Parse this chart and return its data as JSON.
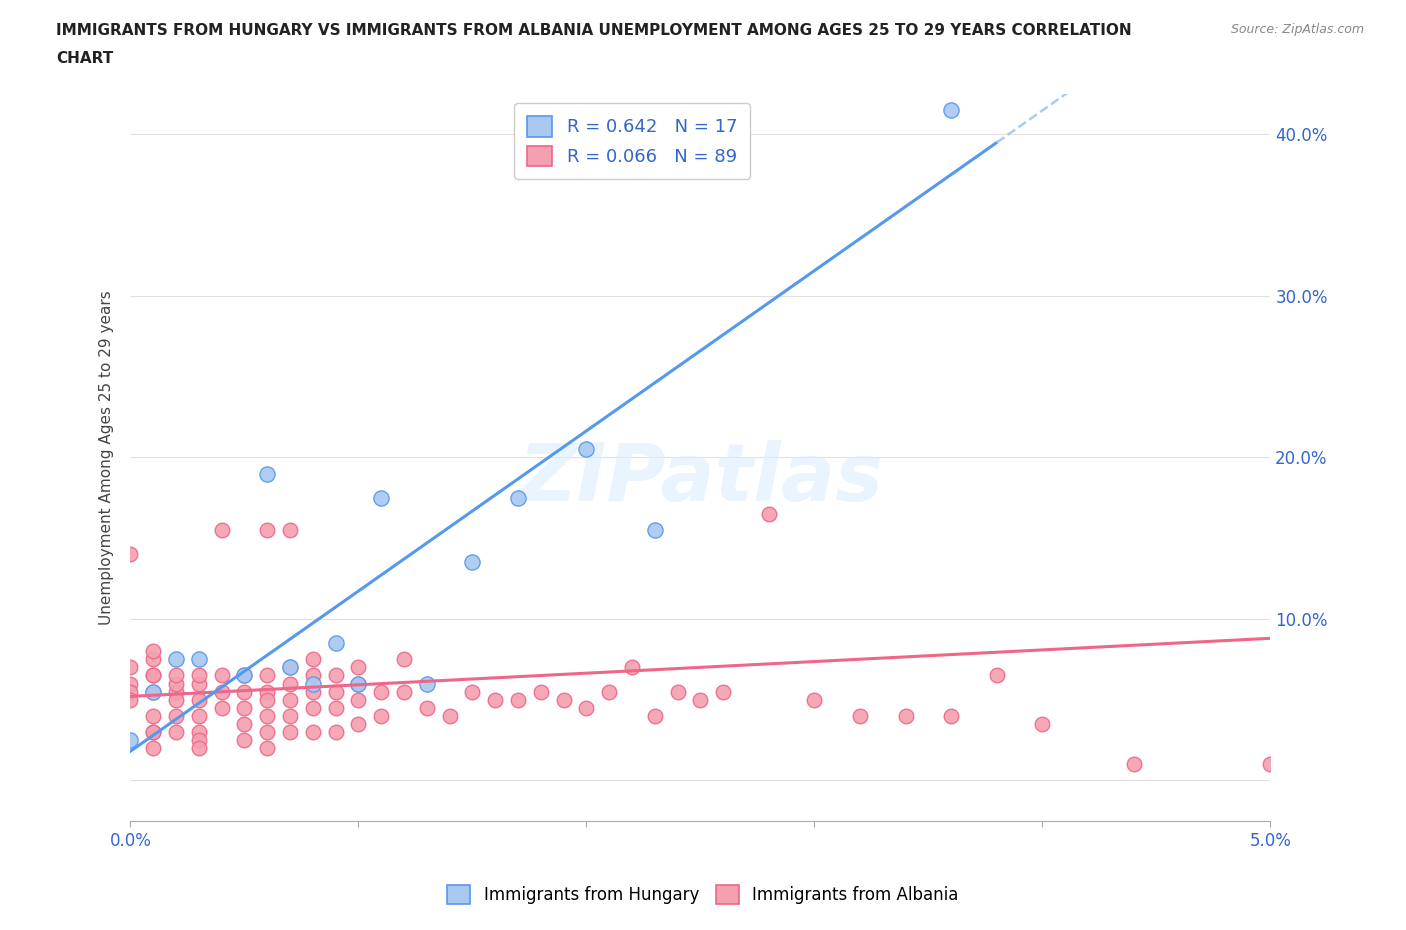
{
  "title_line1": "IMMIGRANTS FROM HUNGARY VS IMMIGRANTS FROM ALBANIA UNEMPLOYMENT AMONG AGES 25 TO 29 YEARS CORRELATION",
  "title_line2": "CHART",
  "source": "Source: ZipAtlas.com",
  "ylabel": "Unemployment Among Ages 25 to 29 years",
  "xlim": [
    0.0,
    0.05
  ],
  "ylim": [
    -0.025,
    0.425
  ],
  "xticks": [
    0.0,
    0.01,
    0.02,
    0.03,
    0.04,
    0.05
  ],
  "xticklabels": [
    "0.0%",
    "",
    "",
    "",
    "",
    "5.0%"
  ],
  "ytick_positions": [
    0.0,
    0.1,
    0.2,
    0.3,
    0.4
  ],
  "yticklabels_right": [
    "",
    "10.0%",
    "20.0%",
    "30.0%",
    "40.0%"
  ],
  "hungary_R": 0.642,
  "hungary_N": 17,
  "albania_R": 0.066,
  "albania_N": 89,
  "hungary_color": "#a8c8f0",
  "albania_color": "#f4a0b0",
  "hungary_line_color": "#5599ee",
  "albania_line_color": "#ee6688",
  "dash_line_color": "#aaccee",
  "watermark": "ZIPatlas",
  "background_color": "#ffffff",
  "grid_color": "#e0e0e0",
  "hungary_scatter_x": [
    0.0,
    0.001,
    0.002,
    0.003,
    0.005,
    0.006,
    0.007,
    0.008,
    0.009,
    0.01,
    0.011,
    0.013,
    0.015,
    0.017,
    0.02,
    0.023,
    0.036
  ],
  "hungary_scatter_y": [
    0.025,
    0.055,
    0.075,
    0.075,
    0.065,
    0.19,
    0.07,
    0.06,
    0.085,
    0.06,
    0.175,
    0.06,
    0.135,
    0.175,
    0.205,
    0.155,
    0.415
  ],
  "albania_scatter_x": [
    0.0,
    0.0,
    0.0,
    0.0,
    0.0,
    0.001,
    0.001,
    0.001,
    0.001,
    0.001,
    0.001,
    0.001,
    0.001,
    0.001,
    0.002,
    0.002,
    0.002,
    0.002,
    0.002,
    0.002,
    0.003,
    0.003,
    0.003,
    0.003,
    0.003,
    0.003,
    0.003,
    0.004,
    0.004,
    0.004,
    0.004,
    0.005,
    0.005,
    0.005,
    0.005,
    0.005,
    0.006,
    0.006,
    0.006,
    0.006,
    0.006,
    0.006,
    0.006,
    0.007,
    0.007,
    0.007,
    0.007,
    0.007,
    0.007,
    0.008,
    0.008,
    0.008,
    0.008,
    0.008,
    0.009,
    0.009,
    0.009,
    0.009,
    0.01,
    0.01,
    0.01,
    0.01,
    0.011,
    0.011,
    0.012,
    0.012,
    0.013,
    0.014,
    0.015,
    0.016,
    0.017,
    0.018,
    0.019,
    0.02,
    0.021,
    0.022,
    0.023,
    0.024,
    0.025,
    0.026,
    0.028,
    0.03,
    0.032,
    0.034,
    0.036,
    0.038,
    0.04,
    0.044,
    0.05
  ],
  "albania_scatter_y": [
    0.06,
    0.055,
    0.07,
    0.05,
    0.14,
    0.065,
    0.055,
    0.065,
    0.075,
    0.08,
    0.03,
    0.02,
    0.03,
    0.04,
    0.055,
    0.06,
    0.065,
    0.05,
    0.04,
    0.03,
    0.06,
    0.065,
    0.05,
    0.04,
    0.03,
    0.025,
    0.02,
    0.155,
    0.065,
    0.055,
    0.045,
    0.065,
    0.055,
    0.045,
    0.035,
    0.025,
    0.155,
    0.065,
    0.055,
    0.05,
    0.04,
    0.03,
    0.02,
    0.155,
    0.07,
    0.06,
    0.05,
    0.04,
    0.03,
    0.075,
    0.065,
    0.055,
    0.045,
    0.03,
    0.065,
    0.055,
    0.045,
    0.03,
    0.07,
    0.06,
    0.05,
    0.035,
    0.055,
    0.04,
    0.075,
    0.055,
    0.045,
    0.04,
    0.055,
    0.05,
    0.05,
    0.055,
    0.05,
    0.045,
    0.055,
    0.07,
    0.04,
    0.055,
    0.05,
    0.055,
    0.165,
    0.05,
    0.04,
    0.04,
    0.04,
    0.065,
    0.035,
    0.01,
    0.01
  ]
}
